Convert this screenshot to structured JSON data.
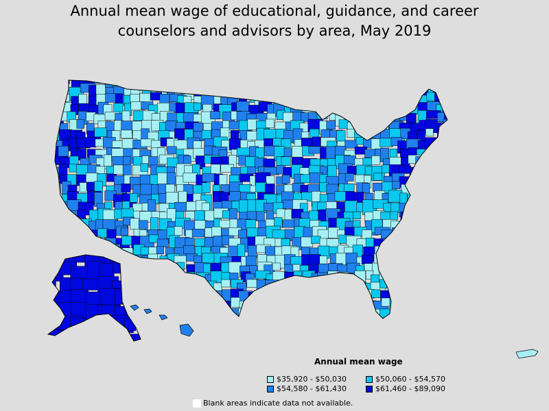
{
  "title_lines": [
    "Annual mean wage of educational, guidance, and career",
    "counselors and advisors by area, May 2019"
  ],
  "legend": {
    "title": "Annual mean wage",
    "items": [
      {
        "label": "$35,920 - $50,030",
        "color": "#a6f0f5"
      },
      {
        "label": "$50,060 - $54,570",
        "color": "#0ac8f0"
      },
      {
        "label": "$54,580 - $61,430",
        "color": "#2080ee"
      },
      {
        "label": "$61,460 - $89,090",
        "color": "#0008e0"
      }
    ]
  },
  "blank_note": "Blank areas indicate data not available.",
  "colors": {
    "background": "#dedede",
    "border": "#000000",
    "blank": "#ffffff"
  }
}
